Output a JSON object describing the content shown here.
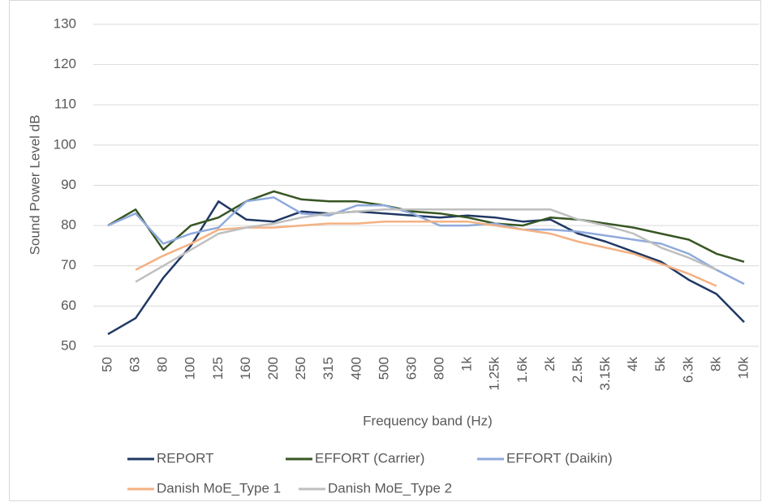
{
  "chart_data": {
    "type": "line",
    "y_label": "Sound Power Level dB",
    "x_label": "Frequency band (Hz)",
    "categories": [
      "50",
      "63",
      "80",
      "100",
      "125",
      "160",
      "200",
      "250",
      "315",
      "400",
      "500",
      "630",
      "800",
      "1k",
      "1.25k",
      "1.6k",
      "2k",
      "2.5k",
      "3.15k",
      "4k",
      "5k",
      "6.3k",
      "8k",
      "10k"
    ],
    "series": [
      {
        "name": "REPORT",
        "color": "#203864",
        "values": [
          53,
          57,
          67,
          75,
          86,
          81.5,
          81,
          83.5,
          83,
          83.5,
          83,
          82.5,
          82,
          82.5,
          82,
          81,
          81.5,
          78,
          76,
          73.5,
          71,
          66.5,
          63,
          56
        ]
      },
      {
        "name": "EFFORT (Carrier)",
        "color": "#375623",
        "values": [
          80,
          84,
          74,
          80,
          82,
          86,
          88.5,
          86.5,
          86,
          86,
          85,
          83.5,
          83,
          82,
          80.5,
          80,
          82,
          81.5,
          80.5,
          79.5,
          78,
          76.5,
          73,
          71
        ]
      },
      {
        "name": "EFFORT (Daikin)",
        "color": "#8faadc",
        "values": [
          80,
          83,
          75.5,
          78,
          79.5,
          86,
          87,
          83,
          82.5,
          85,
          85,
          83,
          80,
          80,
          80.5,
          79,
          79,
          78.5,
          77.5,
          76.5,
          75.5,
          73,
          69,
          65.5
        ]
      },
      {
        "name": "Danish MoE_Type 1",
        "color": "#f4b183",
        "values": [
          null,
          69,
          72.5,
          75.5,
          79,
          79.5,
          79.5,
          80,
          80.5,
          80.5,
          81,
          81,
          81,
          81,
          80,
          79,
          78,
          76,
          74.5,
          73,
          70.5,
          68,
          65,
          null
        ]
      },
      {
        "name": "Danish MoE_Type 2",
        "color": "#bfbfbf",
        "values": [
          null,
          66,
          70,
          74,
          78,
          79.5,
          80.5,
          82,
          83,
          83.5,
          84,
          84,
          84,
          84,
          84,
          84,
          84,
          81.5,
          80,
          78,
          74.5,
          72,
          69,
          null
        ]
      }
    ],
    "ylim": [
      50,
      130
    ],
    "yticks": [
      50,
      60,
      70,
      80,
      90,
      100,
      110,
      120,
      130
    ],
    "grid": true,
    "legend": "bottom"
  }
}
